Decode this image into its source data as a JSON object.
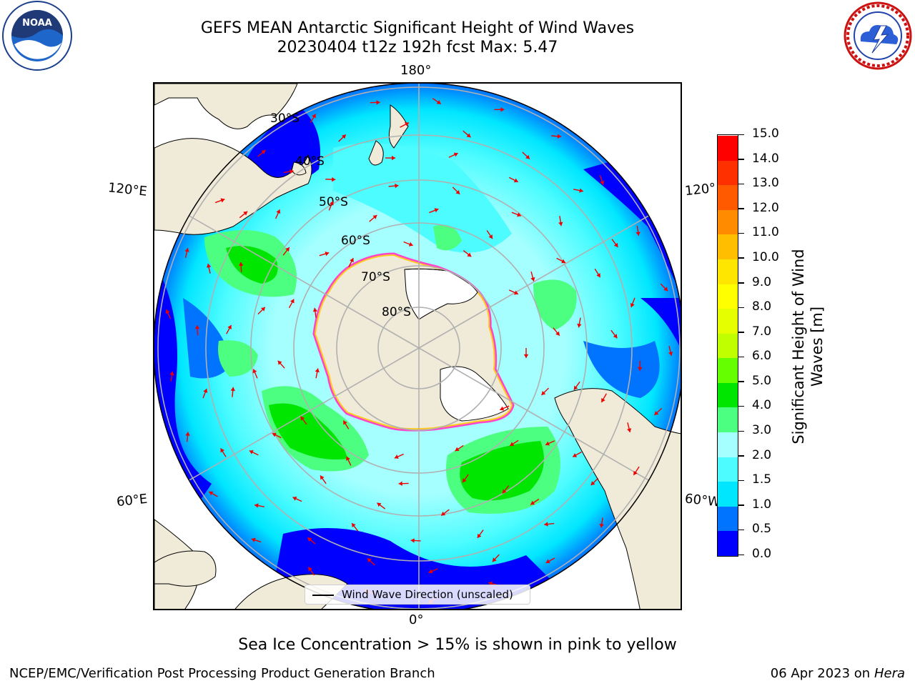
{
  "header": {
    "title_line1": "GEFS MEAN Antarctic Significant Height of Wind Waves",
    "title_line2": "20230404 t12z 192h fcst   Max: 5.47"
  },
  "logos": {
    "noaa": {
      "text": "NOAA",
      "icon": "noaa-logo-icon"
    },
    "nws": {
      "icon": "nws-logo-icon"
    }
  },
  "map": {
    "projection": "south-polar-stereographic",
    "longitude_labels": {
      "top": "180°",
      "bottom": "0°",
      "left_upper": "120°E",
      "right_upper": "120°",
      "left_lower": "60°E",
      "right_lower": "60°W"
    },
    "latitude_labels": [
      "30°S",
      "40°S",
      "50°S",
      "60°S",
      "70°S",
      "80°S"
    ],
    "colors": {
      "land": "#efebd8",
      "ice": "#ffffff",
      "arrows": "#ee0000",
      "grid": "#b0b0b0",
      "ice_edge": [
        "#ff44cc",
        "#ffcc22"
      ]
    }
  },
  "colorbar": {
    "title_line1": "Significant Height of Wind",
    "title_line2": "Waves [m]",
    "tick_labels": [
      "0.0",
      "0.5",
      "1.0",
      "1.5",
      "2.0",
      "3.0",
      "4.0",
      "5.0",
      "6.0",
      "7.0",
      "8.0",
      "9.0",
      "10.0",
      "11.0",
      "12.0",
      "13.0",
      "14.0",
      "15.0"
    ],
    "colors": [
      "#0000ff",
      "#0073ff",
      "#00e6ff",
      "#4dfcff",
      "#a6ffff",
      "#4dff80",
      "#00e600",
      "#66ff00",
      "#c0ff00",
      "#e6ff00",
      "#ffff00",
      "#ffe600",
      "#ffbf00",
      "#ff8c00",
      "#ff5a00",
      "#ff3000",
      "#ff0000"
    ]
  },
  "legend": {
    "label": "Wind Wave Direction (unscaled)"
  },
  "footnote": "Sea Ice Concentration > 15% is shown in pink to yellow",
  "footer": {
    "left": "NCEP/EMC/Verification Post Processing Product Generation Branch",
    "right_prefix": "06 Apr 2023 on ",
    "right_machine": "Hera"
  }
}
